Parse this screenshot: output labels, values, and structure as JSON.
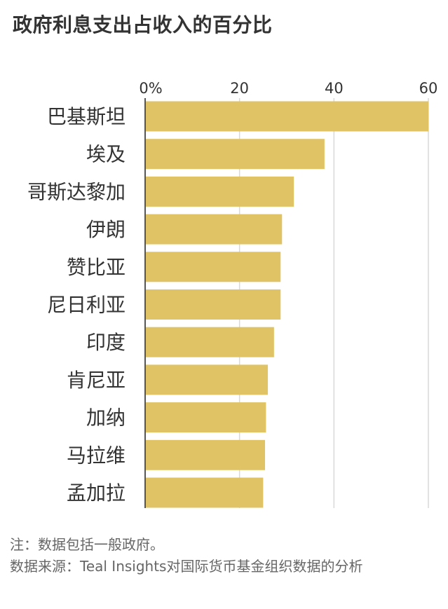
{
  "title": "政府利息支出占收入的百分比",
  "chart_data": {
    "type": "bar",
    "orientation": "horizontal",
    "title": "政府利息支出占收入的百分比",
    "xlabel": "",
    "ylabel": "",
    "xlim": [
      0,
      60
    ],
    "ticks": [
      0,
      20,
      40,
      60
    ],
    "tick_labels": [
      "0%",
      "20",
      "40",
      "60"
    ],
    "categories": [
      "巴基斯坦",
      "埃及",
      "哥斯达黎加",
      "伊朗",
      "赞比亚",
      "尼日利亚",
      "印度",
      "肯尼亚",
      "加纳",
      "马拉维",
      "孟加拉"
    ],
    "values": [
      60,
      38,
      31.5,
      29,
      28.7,
      28.7,
      27.3,
      26,
      25.6,
      25.4,
      25
    ],
    "grid": "vertical",
    "bar_color": "#e0c365",
    "grid_color": "#d9d9d9",
    "axis_color": "#555555"
  },
  "notes": {
    "note": "注：数据包括一般政府。",
    "source": "数据来源：Teal Insights对国际货币基金组织数据的分析"
  }
}
